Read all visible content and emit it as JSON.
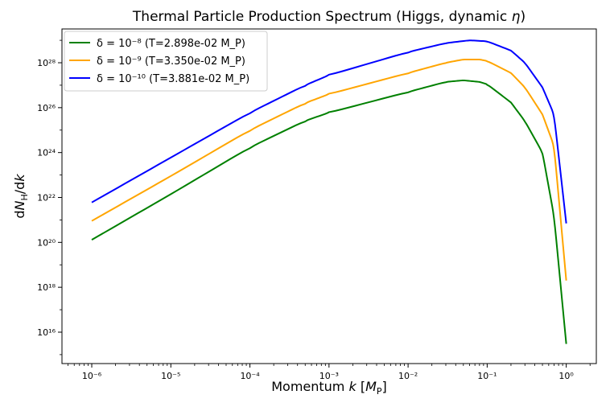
{
  "chart_data": {
    "type": "line",
    "title": "Thermal Particle Production Spectrum (Higgs, dynamic η)",
    "xlabel": "Momentum k  [M_P]",
    "ylabel": "dN_H/dk",
    "xscale": "log",
    "yscale": "log",
    "xlim": [
      4.2e-07,
      2.4
    ],
    "ylim": [
      400000000000000.0,
      3.2e+29
    ],
    "x_ticks": [
      "10⁻⁶",
      "10⁻⁵",
      "10⁻⁴",
      "10⁻³",
      "10⁻²",
      "10⁻¹",
      "10⁰"
    ],
    "y_ticks": [
      "10¹⁶",
      "10¹⁸",
      "10²⁰",
      "10²²",
      "10²⁴",
      "10²⁶",
      "10²⁸"
    ],
    "legend_position": "top-left",
    "series": [
      {
        "name": "δ = 10⁻⁸  (T=2.898e-02 M_P)",
        "color": "#008000",
        "x": [
          1e-06,
          1e-05,
          0.0001,
          0.0005,
          0.001,
          0.01,
          0.03,
          0.05,
          0.08,
          0.1,
          0.2,
          0.3,
          0.5,
          0.7,
          1.0
        ],
        "y": [
          1.3e+20,
          1.4e+22,
          1.7e+24,
          2.6e+25,
          6e+25,
          5e+26,
          1.4e+27,
          1.65e+27,
          1.4e+27,
          1.1e+27,
          1.7e+26,
          2.5e+25,
          1e+24,
          1.5e+21,
          3000000000000000.0
        ]
      },
      {
        "name": "δ = 10⁻⁹  (T=3.350e-02 M_P)",
        "color": "#ffa500",
        "x": [
          1e-06,
          1e-05,
          0.0001,
          0.0005,
          0.001,
          0.01,
          0.03,
          0.05,
          0.08,
          0.1,
          0.2,
          0.3,
          0.5,
          0.7,
          1.0
        ],
        "y": [
          9e+20,
          9e+22,
          1e+25,
          1.6e+26,
          4e+26,
          3.5e+27,
          1e+28,
          1.4e+28,
          1.4e+28,
          1.2e+28,
          3.5e+27,
          8e+26,
          5e+25,
          2e+24,
          2e+18
        ]
      },
      {
        "name": "δ = 10⁻¹⁰  (T=3.881e-02 M_P)",
        "color": "#0000ff",
        "x": [
          1e-06,
          1e-05,
          0.0001,
          0.0005,
          0.001,
          0.01,
          0.03,
          0.06,
          0.1,
          0.2,
          0.3,
          0.5,
          0.7,
          1.0
        ],
        "y": [
          6e+21,
          6e+23,
          6e+25,
          1e+27,
          2.8e+27,
          3e+28,
          7.5e+28,
          1e+29,
          9e+28,
          3.5e+28,
          1e+28,
          8e+26,
          5e+25,
          7e+20
        ]
      }
    ]
  },
  "legend": [
    {
      "math": "δ = 10⁻⁸",
      "info": "(T=2.898e-02 M_P)"
    },
    {
      "math": "δ = 10⁻⁹",
      "info": "(T=3.350e-02 M_P)"
    },
    {
      "math": "δ = 10⁻¹⁰",
      "info": "(T=3.881e-02 M_P)"
    }
  ]
}
